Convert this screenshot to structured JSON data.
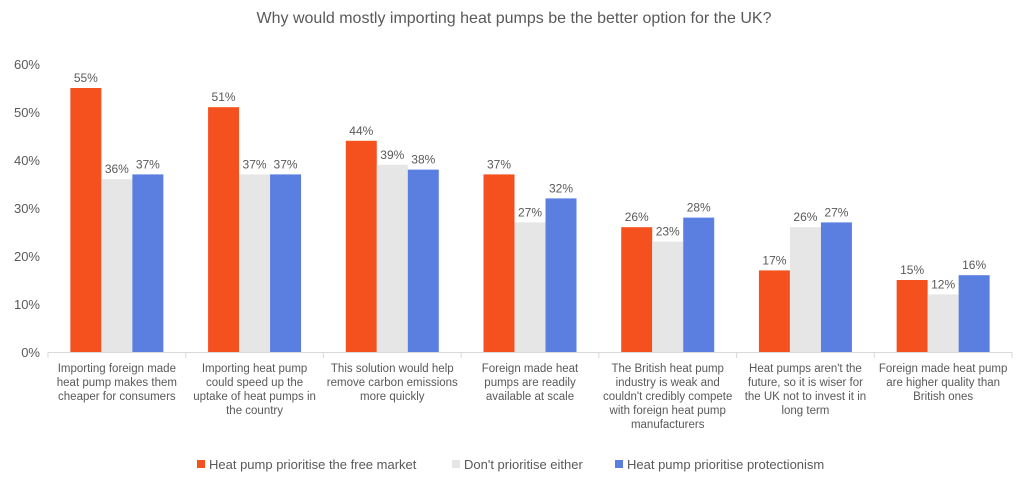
{
  "chart_data": {
    "type": "bar",
    "title": "Why would mostly importing heat pumps be the better option for the UK?",
    "xlabel": "",
    "ylabel": "",
    "ylim": [
      0,
      60
    ],
    "yticks": [
      "0%",
      "10%",
      "20%",
      "30%",
      "40%",
      "50%",
      "60%"
    ],
    "grid": false,
    "legend_position": "bottom",
    "categories": [
      [
        "Importing foreign made",
        "heat pump makes them",
        "cheaper for consumers"
      ],
      [
        "Importing heat pump",
        "could speed up the",
        "uptake of heat pumps in",
        "the country"
      ],
      [
        "This solution would help",
        "remove carbon emissions",
        "more quickly"
      ],
      [
        "Foreign made heat",
        "pumps are readily",
        "available at scale"
      ],
      [
        "The British heat pump",
        "industry is weak and",
        "couldn't credibly compete",
        "with foreign heat pump",
        "manufacturers"
      ],
      [
        "Heat pumps aren't the",
        "future, so it is wiser for",
        "the UK not to invest it in",
        "long term"
      ],
      [
        "Foreign made heat pump",
        "are higher quality than",
        "British ones"
      ]
    ],
    "series": [
      {
        "name": "Heat pump prioritise the free market",
        "color": "#f4511e",
        "values": [
          55,
          51,
          44,
          37,
          26,
          17,
          15
        ],
        "labels": [
          "55%",
          "51%",
          "44%",
          "37%",
          "26%",
          "17%",
          "15%"
        ]
      },
      {
        "name": "Don't prioritise either",
        "color": "#e6e6e6",
        "values": [
          36,
          37,
          39,
          27,
          23,
          26,
          12
        ],
        "labels": [
          "36%",
          "37%",
          "39%",
          "27%",
          "23%",
          "26%",
          "12%"
        ]
      },
      {
        "name": "Heat pump prioritise protectionism",
        "color": "#5b7fe0",
        "values": [
          37,
          37,
          38,
          32,
          28,
          27,
          16
        ],
        "labels": [
          "37%",
          "37%",
          "38%",
          "32%",
          "28%",
          "27%",
          "16%"
        ]
      }
    ]
  }
}
